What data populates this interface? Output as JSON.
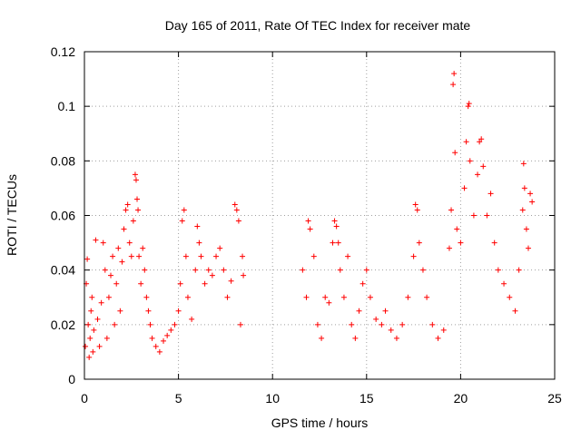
{
  "chart_data": {
    "type": "scatter",
    "title": "Day 165 of 2011, Rate Of TEC Index for receiver mate",
    "xlabel": "GPS time / hours",
    "ylabel": "ROTI / TECUs",
    "xlim": [
      0,
      25
    ],
    "ylim": [
      0,
      0.12
    ],
    "x_ticks": [
      0,
      5,
      10,
      15,
      20,
      25
    ],
    "x_tick_labels": [
      "0",
      "5",
      "10",
      "15",
      "20",
      "25"
    ],
    "y_ticks": [
      0,
      0.02,
      0.04,
      0.06,
      0.08,
      0.1,
      0.12
    ],
    "y_tick_labels": [
      "0",
      "0.02",
      "0.04",
      "0.06",
      "0.08",
      "0.1",
      "0.12"
    ],
    "grid": true,
    "marker": "+",
    "series": [
      {
        "name": "ROTI",
        "color": "#ff0000",
        "points": [
          [
            0.05,
            0.012
          ],
          [
            0.1,
            0.035
          ],
          [
            0.15,
            0.044
          ],
          [
            0.2,
            0.02
          ],
          [
            0.25,
            0.008
          ],
          [
            0.3,
            0.015
          ],
          [
            0.35,
            0.025
          ],
          [
            0.4,
            0.03
          ],
          [
            0.45,
            0.01
          ],
          [
            0.5,
            0.018
          ],
          [
            0.6,
            0.051
          ],
          [
            0.7,
            0.022
          ],
          [
            0.8,
            0.012
          ],
          [
            0.9,
            0.028
          ],
          [
            1.0,
            0.05
          ],
          [
            1.1,
            0.04
          ],
          [
            1.2,
            0.015
          ],
          [
            1.3,
            0.03
          ],
          [
            1.4,
            0.038
          ],
          [
            1.5,
            0.045
          ],
          [
            1.6,
            0.02
          ],
          [
            1.7,
            0.035
          ],
          [
            1.8,
            0.048
          ],
          [
            1.9,
            0.025
          ],
          [
            2.0,
            0.043
          ],
          [
            2.1,
            0.055
          ],
          [
            2.2,
            0.062
          ],
          [
            2.3,
            0.064
          ],
          [
            2.4,
            0.05
          ],
          [
            2.5,
            0.045
          ],
          [
            2.6,
            0.058
          ],
          [
            2.7,
            0.075
          ],
          [
            2.75,
            0.073
          ],
          [
            2.8,
            0.066
          ],
          [
            2.85,
            0.062
          ],
          [
            2.9,
            0.045
          ],
          [
            3.0,
            0.035
          ],
          [
            3.1,
            0.048
          ],
          [
            3.2,
            0.04
          ],
          [
            3.3,
            0.03
          ],
          [
            3.4,
            0.025
          ],
          [
            3.5,
            0.02
          ],
          [
            3.6,
            0.015
          ],
          [
            3.8,
            0.012
          ],
          [
            4.0,
            0.01
          ],
          [
            4.2,
            0.014
          ],
          [
            4.4,
            0.016
          ],
          [
            4.6,
            0.018
          ],
          [
            4.8,
            0.02
          ],
          [
            5.0,
            0.025
          ],
          [
            5.1,
            0.035
          ],
          [
            5.2,
            0.058
          ],
          [
            5.3,
            0.062
          ],
          [
            5.4,
            0.045
          ],
          [
            5.5,
            0.03
          ],
          [
            5.7,
            0.022
          ],
          [
            5.9,
            0.04
          ],
          [
            6.0,
            0.056
          ],
          [
            6.1,
            0.05
          ],
          [
            6.2,
            0.045
          ],
          [
            6.4,
            0.035
          ],
          [
            6.6,
            0.04
          ],
          [
            6.8,
            0.038
          ],
          [
            7.0,
            0.045
          ],
          [
            7.2,
            0.048
          ],
          [
            7.4,
            0.04
          ],
          [
            7.6,
            0.03
          ],
          [
            7.8,
            0.036
          ],
          [
            8.0,
            0.064
          ],
          [
            8.1,
            0.062
          ],
          [
            8.2,
            0.058
          ],
          [
            8.3,
            0.02
          ],
          [
            8.4,
            0.045
          ],
          [
            8.45,
            0.038
          ],
          [
            11.6,
            0.04
          ],
          [
            11.8,
            0.03
          ],
          [
            11.9,
            0.058
          ],
          [
            12.0,
            0.055
          ],
          [
            12.2,
            0.045
          ],
          [
            12.4,
            0.02
          ],
          [
            12.6,
            0.015
          ],
          [
            12.8,
            0.03
          ],
          [
            13.0,
            0.028
          ],
          [
            13.2,
            0.05
          ],
          [
            13.3,
            0.058
          ],
          [
            13.4,
            0.056
          ],
          [
            13.5,
            0.05
          ],
          [
            13.6,
            0.04
          ],
          [
            13.8,
            0.03
          ],
          [
            14.0,
            0.045
          ],
          [
            14.2,
            0.02
          ],
          [
            14.4,
            0.015
          ],
          [
            14.6,
            0.025
          ],
          [
            14.8,
            0.035
          ],
          [
            15.0,
            0.04
          ],
          [
            15.2,
            0.03
          ],
          [
            15.5,
            0.022
          ],
          [
            15.8,
            0.02
          ],
          [
            16.0,
            0.025
          ],
          [
            16.3,
            0.018
          ],
          [
            16.6,
            0.015
          ],
          [
            16.9,
            0.02
          ],
          [
            17.2,
            0.03
          ],
          [
            17.5,
            0.045
          ],
          [
            17.6,
            0.064
          ],
          [
            17.7,
            0.062
          ],
          [
            17.8,
            0.05
          ],
          [
            18.0,
            0.04
          ],
          [
            18.2,
            0.03
          ],
          [
            18.5,
            0.02
          ],
          [
            18.8,
            0.015
          ],
          [
            19.1,
            0.018
          ],
          [
            19.4,
            0.048
          ],
          [
            19.5,
            0.062
          ],
          [
            19.6,
            0.108
          ],
          [
            19.65,
            0.112
          ],
          [
            19.7,
            0.083
          ],
          [
            19.8,
            0.055
          ],
          [
            20.0,
            0.05
          ],
          [
            20.2,
            0.07
          ],
          [
            20.3,
            0.087
          ],
          [
            20.4,
            0.1
          ],
          [
            20.45,
            0.101
          ],
          [
            20.5,
            0.08
          ],
          [
            20.7,
            0.06
          ],
          [
            20.9,
            0.075
          ],
          [
            21.0,
            0.087
          ],
          [
            21.1,
            0.088
          ],
          [
            21.2,
            0.078
          ],
          [
            21.4,
            0.06
          ],
          [
            21.6,
            0.068
          ],
          [
            21.8,
            0.05
          ],
          [
            22.0,
            0.04
          ],
          [
            22.3,
            0.035
          ],
          [
            22.6,
            0.03
          ],
          [
            22.9,
            0.025
          ],
          [
            23.1,
            0.04
          ],
          [
            23.3,
            0.062
          ],
          [
            23.35,
            0.079
          ],
          [
            23.4,
            0.07
          ],
          [
            23.5,
            0.055
          ],
          [
            23.6,
            0.048
          ],
          [
            23.7,
            0.068
          ],
          [
            23.8,
            0.065
          ]
        ]
      }
    ]
  }
}
